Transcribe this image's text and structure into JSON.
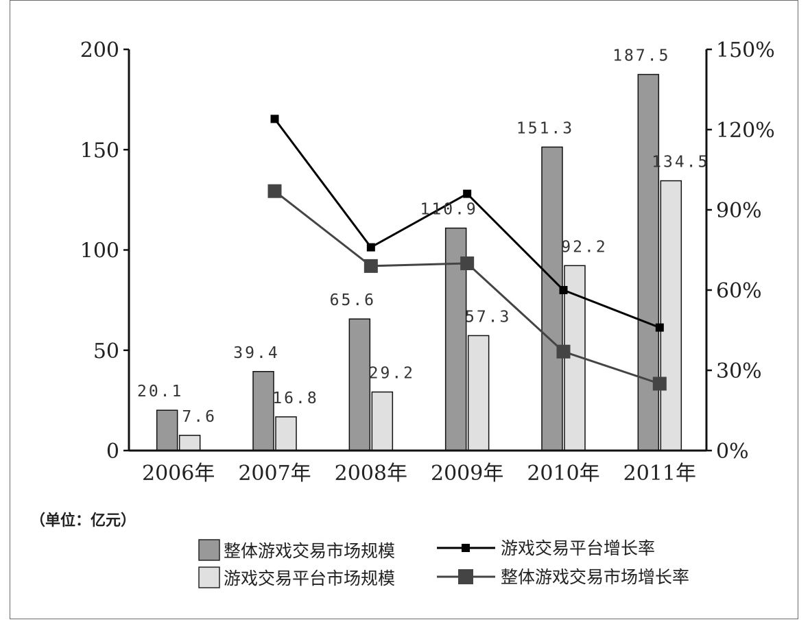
{
  "chart_data": {
    "type": "bar",
    "categories": [
      "2006年",
      "2007年",
      "2008年",
      "2009年",
      "2010年",
      "2011年"
    ],
    "unit_label": "（单位：亿元）",
    "y_left": {
      "ticks": [
        "0",
        "50",
        "100",
        "150",
        "200"
      ],
      "range": [
        0,
        200
      ]
    },
    "y_right": {
      "ticks": [
        "0%",
        "30%",
        "60%",
        "90%",
        "120%",
        "150%"
      ],
      "range": [
        0,
        150
      ]
    },
    "bar_series": [
      {
        "name": "整体游戏交易市场规模",
        "values": [
          20.1,
          39.4,
          65.6,
          110.9,
          151.3,
          187.5
        ],
        "labels": [
          "20.1",
          "39.4",
          "65.6",
          "110.9",
          "151.3",
          "187.5"
        ],
        "color": "#999999"
      },
      {
        "name": "游戏交易平台市场规模",
        "values": [
          7.6,
          16.8,
          29.2,
          57.3,
          92.2,
          134.5
        ],
        "labels": [
          "7.6",
          "16.8",
          "29.2",
          "57.3",
          "92.2",
          "134.5"
        ],
        "color": "#e0e0e0"
      }
    ],
    "line_series": [
      {
        "name": "游戏交易平台增长率",
        "values": [
          null,
          124,
          76,
          96,
          60,
          46
        ],
        "color": "#000000",
        "marker": "small-square"
      },
      {
        "name": "整体游戏交易市场增长率",
        "values": [
          null,
          97,
          69,
          70,
          37,
          25
        ],
        "color": "#444444",
        "marker": "large-square"
      }
    ],
    "grid": false,
    "legend_position": "bottom"
  }
}
